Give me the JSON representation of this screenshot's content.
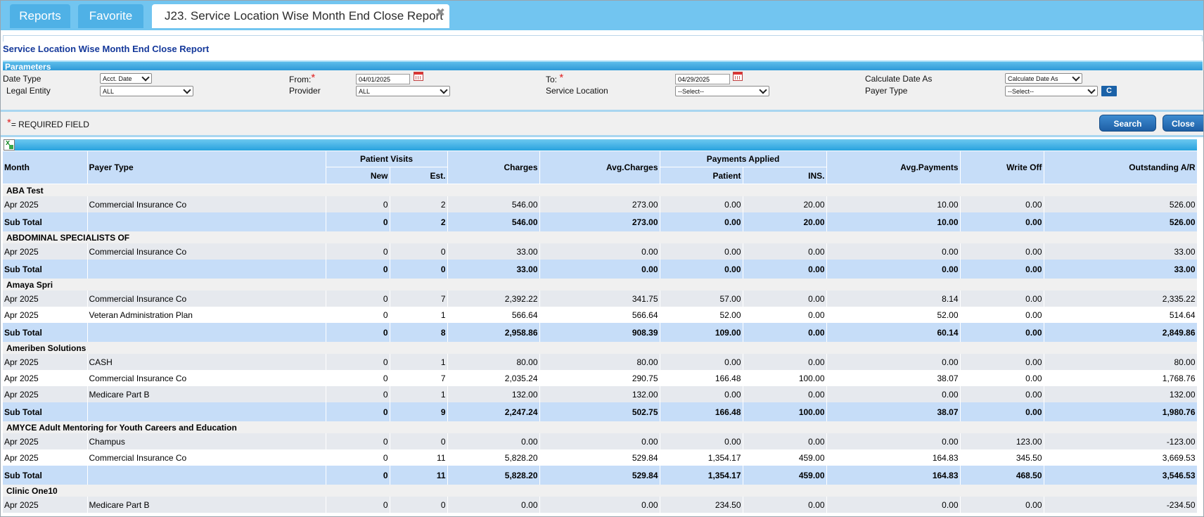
{
  "tabs": [
    {
      "label": "Reports",
      "active": false
    },
    {
      "label": "Favorite",
      "active": false
    },
    {
      "label": "J23. Service Location Wise Month End Close Report",
      "active": true
    }
  ],
  "page_title": "Service Location Wise Month End Close Report",
  "parameters": {
    "section_label": "Parameters",
    "date_type": {
      "label": "Date Type",
      "value": "Acct. Date"
    },
    "from": {
      "label": "From:",
      "value": "04/01/2025"
    },
    "to": {
      "label": "To:",
      "value": "04/29/2025"
    },
    "calculate_date_as": {
      "label": "Calculate Date As",
      "value": "Calculate Date As"
    },
    "legal_entity": {
      "label": "Legal Entity",
      "value": "ALL"
    },
    "provider": {
      "label": "Provider",
      "value": "ALL"
    },
    "service_location": {
      "label": "Service Location",
      "value": "--Select--"
    },
    "payer_type": {
      "label": "Payer Type",
      "value": "--Select--"
    },
    "c_button": "C",
    "required_note": "= REQUIRED FIELD",
    "required_star": "*"
  },
  "buttons": {
    "search": "Search",
    "close": "Close"
  },
  "grid": {
    "headers": {
      "month": "Month",
      "payer_type": "Payer Type",
      "patient_visits": "Patient Visits",
      "new": "New",
      "est": "Est.",
      "charges": "Charges",
      "avg_charges": "Avg.Charges",
      "payments_applied": "Payments Applied",
      "patient": "Patient",
      "ins": "INS.",
      "avg_payments": "Avg.Payments",
      "write_off": "Write Off",
      "outstanding": "Outstanding A/R"
    },
    "groups": [
      {
        "name": "ABA Test",
        "rows": [
          [
            "Apr 2025",
            "Commercial Insurance Co",
            "0",
            "2",
            "546.00",
            "273.00",
            "0.00",
            "20.00",
            "10.00",
            "0.00",
            "526.00"
          ]
        ],
        "subtotal": [
          "Sub Total",
          "",
          "0",
          "2",
          "546.00",
          "273.00",
          "0.00",
          "20.00",
          "10.00",
          "0.00",
          "526.00"
        ]
      },
      {
        "name": "ABDOMINAL SPECIALISTS OF",
        "rows": [
          [
            "Apr 2025",
            "Commercial Insurance Co",
            "0",
            "0",
            "33.00",
            "0.00",
            "0.00",
            "0.00",
            "0.00",
            "0.00",
            "33.00"
          ]
        ],
        "subtotal": [
          "Sub Total",
          "",
          "0",
          "0",
          "33.00",
          "0.00",
          "0.00",
          "0.00",
          "0.00",
          "0.00",
          "33.00"
        ]
      },
      {
        "name": "Amaya Spri",
        "rows": [
          [
            "Apr 2025",
            "Commercial Insurance Co",
            "0",
            "7",
            "2,392.22",
            "341.75",
            "57.00",
            "0.00",
            "8.14",
            "0.00",
            "2,335.22"
          ],
          [
            "Apr 2025",
            "Veteran Administration Plan",
            "0",
            "1",
            "566.64",
            "566.64",
            "52.00",
            "0.00",
            "52.00",
            "0.00",
            "514.64"
          ]
        ],
        "subtotal": [
          "Sub Total",
          "",
          "0",
          "8",
          "2,958.86",
          "908.39",
          "109.00",
          "0.00",
          "60.14",
          "0.00",
          "2,849.86"
        ]
      },
      {
        "name": "Ameriben Solutions",
        "rows": [
          [
            "Apr 2025",
            "CASH",
            "0",
            "1",
            "80.00",
            "80.00",
            "0.00",
            "0.00",
            "0.00",
            "0.00",
            "80.00"
          ],
          [
            "Apr 2025",
            "Commercial Insurance Co",
            "0",
            "7",
            "2,035.24",
            "290.75",
            "166.48",
            "100.00",
            "38.07",
            "0.00",
            "1,768.76"
          ],
          [
            "Apr 2025",
            "Medicare Part B",
            "0",
            "1",
            "132.00",
            "132.00",
            "0.00",
            "0.00",
            "0.00",
            "0.00",
            "132.00"
          ]
        ],
        "subtotal": [
          "Sub Total",
          "",
          "0",
          "9",
          "2,247.24",
          "502.75",
          "166.48",
          "100.00",
          "38.07",
          "0.00",
          "1,980.76"
        ]
      },
      {
        "name": "AMYCE Adult Mentoring for Youth Careers and Education",
        "rows": [
          [
            "Apr 2025",
            "Champus",
            "0",
            "0",
            "0.00",
            "0.00",
            "0.00",
            "0.00",
            "0.00",
            "123.00",
            "-123.00"
          ],
          [
            "Apr 2025",
            "Commercial Insurance Co",
            "0",
            "11",
            "5,828.20",
            "529.84",
            "1,354.17",
            "459.00",
            "164.83",
            "345.50",
            "3,669.53"
          ]
        ],
        "subtotal": [
          "Sub Total",
          "",
          "0",
          "11",
          "5,828.20",
          "529.84",
          "1,354.17",
          "459.00",
          "164.83",
          "468.50",
          "3,546.53"
        ]
      },
      {
        "name": "Clinic One10",
        "rows": [
          [
            "Apr 2025",
            "Medicare Part B",
            "0",
            "0",
            "0.00",
            "0.00",
            "234.50",
            "0.00",
            "0.00",
            "0.00",
            "-234.50"
          ]
        ],
        "subtotal": null
      }
    ]
  }
}
